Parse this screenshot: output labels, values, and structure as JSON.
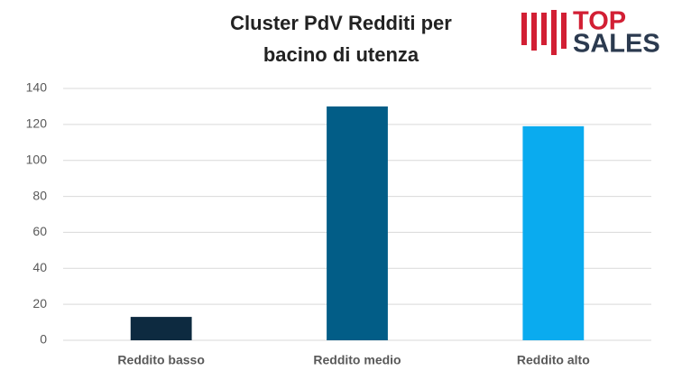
{
  "chart_data": {
    "type": "bar",
    "title": "Cluster PdV Redditi per bacino di utenza",
    "categories": [
      "Reddito basso",
      "Reddito medio",
      "Reddito alto"
    ],
    "values": [
      13,
      130,
      119
    ],
    "colors": [
      "#0d2a40",
      "#025d87",
      "#0aabef"
    ],
    "ylim": [
      0,
      140
    ],
    "yticks": [
      0,
      20,
      40,
      60,
      80,
      100,
      120,
      140
    ],
    "grid": true
  },
  "logo": {
    "top": "TOP",
    "sales": "SALES"
  }
}
